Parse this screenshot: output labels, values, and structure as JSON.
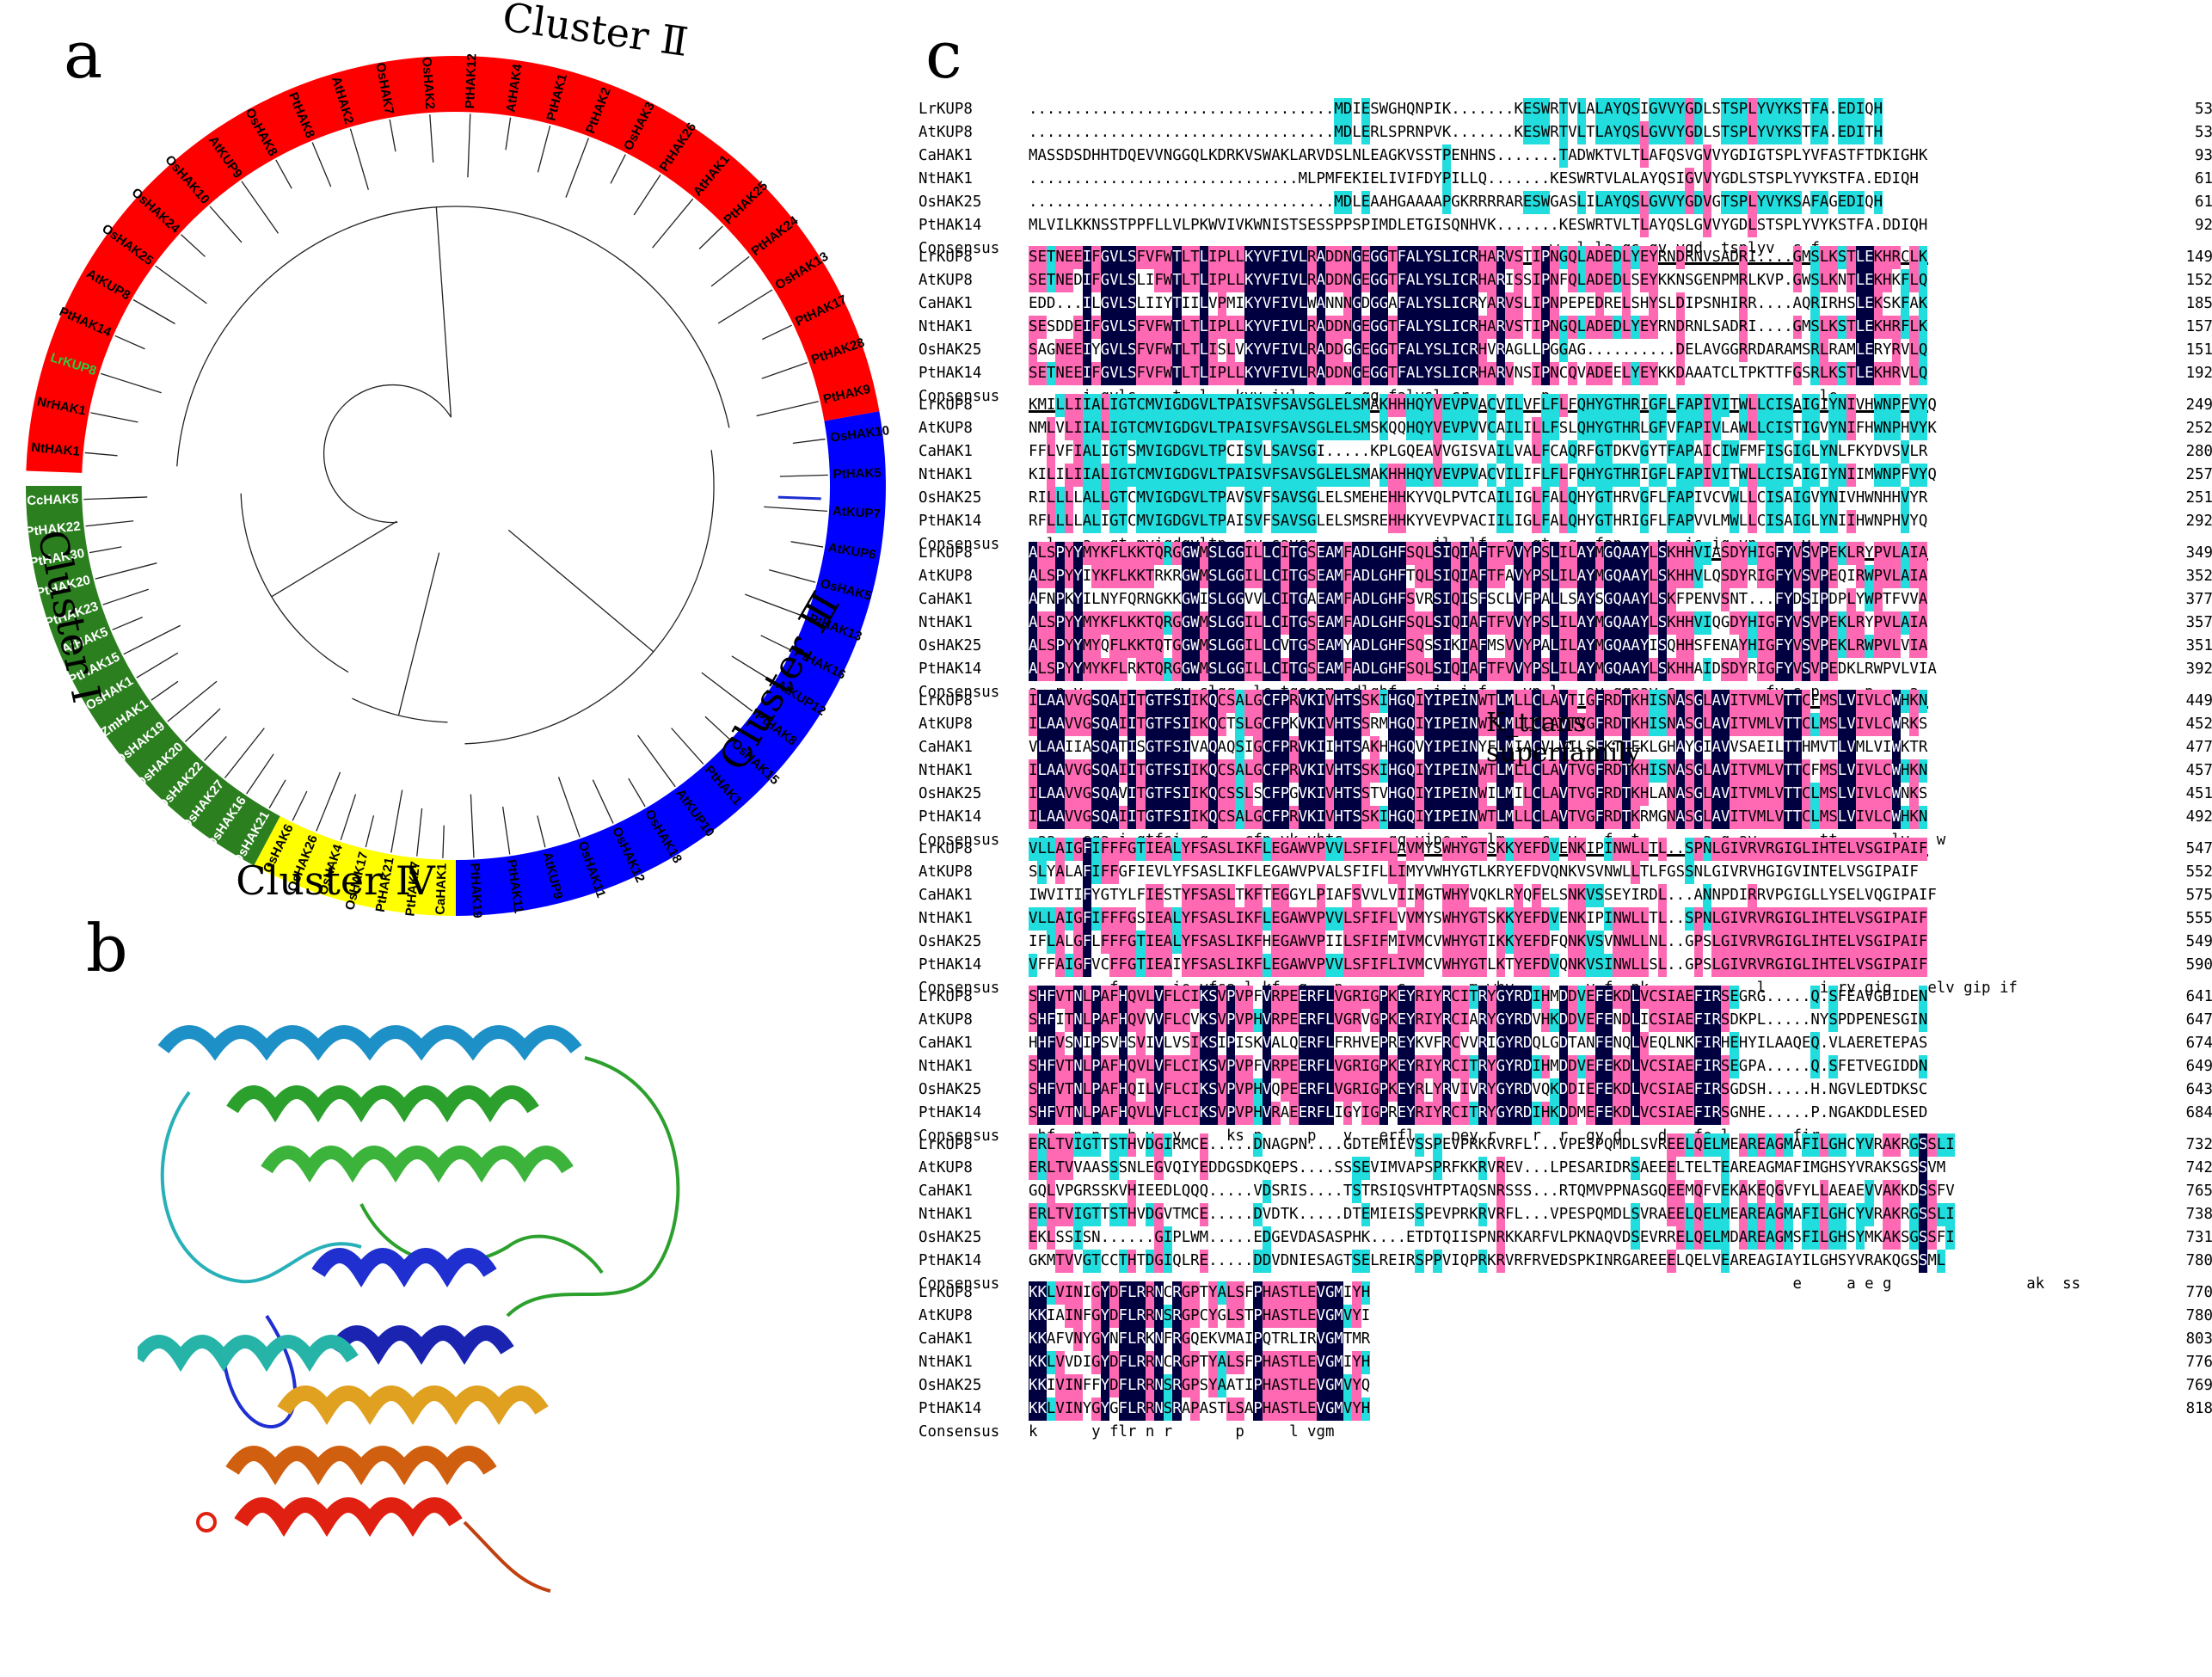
{
  "panel_labels": {
    "a": "a",
    "b": "b",
    "c": "c"
  },
  "tree": {
    "clusters": [
      {
        "label": "Cluster Ⅰ",
        "color": "#2b7f1f",
        "text_color": "#ffffff",
        "leaves": [
          "OsHAK21",
          "OsHAK16",
          "OsHAK27",
          "OsHAK22",
          "OsHAK20",
          "OsHAK19",
          "ZmHAK1",
          "OsHAK1",
          "PtHAK15",
          "AtHAK5",
          "PtHAK23",
          "PtHAK20",
          "PtHAK30",
          "PtHAK22",
          "CcHAK5"
        ]
      },
      {
        "label": "Cluster Ⅳ",
        "color": "#ffff00",
        "text_color": "#000000",
        "leaves": [
          "CaHAK1",
          "PtHAK27",
          "PtHAK21",
          "OsHAK17",
          "OsHAK4",
          "OsHAK26",
          "OsHAK6"
        ]
      },
      {
        "label": "Cluster Ⅲ",
        "color": "#0000ff",
        "text_color": "#000000",
        "leaves": [
          "OsHAK10",
          "PtHAK5",
          "AtKUP7",
          "AtKUP6",
          "OsHAK5",
          "PtHAK13",
          "PtHAK16",
          "AtKUP12",
          "PtHAK8",
          "OsHAK15",
          "PtHAK1",
          "AtKUP10",
          "OsHAK18",
          "OsHAK12",
          "OsHAK11",
          "AtKUP9",
          "PtHAK11",
          "PtHAK19"
        ]
      },
      {
        "label": "Cluster Ⅱ",
        "color": "#ff0000",
        "text_color": "#000000",
        "leaves": [
          "NtHAK1",
          "NrHAK1",
          "LrKUP8",
          "PtHAK14",
          "AtKUP8",
          "OsHAK25",
          "OsHAK24",
          "OsHAK10",
          "AtKUP9",
          "OsHAK8",
          "PtHAK8",
          "AtHAK2",
          "OsHAK7",
          "OsHAK2",
          "PtHAK12",
          "AtHAK4",
          "PtHAK1",
          "PtHAK2",
          "OsHAK3",
          "PtHAK26",
          "AtHAK1",
          "PtHAK25",
          "PtHAK24",
          "OsHAK13",
          "PtHAK17",
          "PtHAK28",
          "PtHAK9"
        ]
      }
    ],
    "highlight_leaf": "LrKUP8",
    "highlight_color": "#2ecc40"
  },
  "alignment": {
    "feature_label": "K_trans superfamily",
    "consensus_name": "Consensus",
    "colors": {
      "identical": "#000040",
      "high": "#ff69b4",
      "low": "#22dddd"
    },
    "blocks": [
      {
        "rows": [
          {
            "name": "LrKUP8",
            "seq": "..................................MDIESWGHQNPIK.......KESWRTVLALAYQSIGVVYGDLSTSPLYVYKSTFA.EDIQH",
            "end": "53"
          },
          {
            "name": "AtKUP8",
            "seq": "..................................MDLERLSPRNPVK.......KESWRTVLTLAYQSLGVVYGDLSTSPLYVYKSTFA.EDITH",
            "end": "53"
          },
          {
            "name": "CaHAK1",
            "seq": "MASSDSDHHTDQEVVNGGQLKDRKVSWAKLARVDSLNLEAGKVSSTPENHNS.......TADWKTVLTLAFQSVGVVYGDIGTSPLYVFASTFTDKIGHK",
            "end": "93"
          },
          {
            "name": "NtHAK1",
            "seq": "..............................MLPMFEKIELIVIFDYPILLQ.......KESWRTVLALAYQSIGVVYGDLSTSPLYVYKSTFA.EDIQH",
            "end": "61"
          },
          {
            "name": "OsHAK25",
            "seq": "..................................MDLEAAHGAAAAPGKRRRRARESWGASLILAYQSLGVVYGDVGTSPLYVYKSAFAGEDIQH",
            "end": "61"
          },
          {
            "name": "PtHAK14",
            "seq": "MLVILKKNSSTPPFLLVLPKWVIVKWNISTSESSPPSPIMDLETGISQNHVK.......KESWRTVLTLAYQSLGVVYGDLSTSPLYVYKSTFA.DDIQH",
            "end": "92"
          }
        ],
        "consensus": "                                                          w  l la qs gv ygd  tsplyv  s f",
        "lines": [
          [
            46,
            100
          ]
        ]
      },
      {
        "rows": [
          {
            "name": "LrKUP8",
            "seq": "SETNEEIFGVLSFVFWTLTLIPLLKYVFIVLRADDNGEGGTFALYSLICRHARVSTIPNGQLADEDLYEYRNDRNVSADRI....GMSLKSTLEKHRCLK",
            "end": "149"
          },
          {
            "name": "AtKUP8",
            "seq": "SETNEDIFGVLSLIFWTLTLIPLLKYVFIVLRADDNGEGGTFALYSLICRHARISSIPNFQLADEDLSEYKKNSGENPMRLKVP.GWSLKNTLEKHKFLQ",
            "end": "152"
          },
          {
            "name": "CaHAK1",
            "seq": "EDD...ILGVLSLIIYTIILVPMIKYVFIVLWANNNGDGGAFALYSLICRYARVSLIPNPEPEDRELSHYSLDIPSNHIRR....AQRIRHSLEKSKFAK",
            "end": "185"
          },
          {
            "name": "NtHAK1",
            "seq": "SESDDEIFGVLSFVFWTLTLIPLLKYVFIVLRADDNGEGGTFALYSLICRHARVSTIPNGQLADEDLYEYRNDRNLSADRI....GMSLKSTLEKHRFLK",
            "end": "157"
          },
          {
            "name": "OsHAK25",
            "seq": "SAGNEEIYGVLSFVFWTLTLISLVKYVFIVLRADDGGEGGTFALYSLICRHVRAGLLPGGAG..........DELAVGGRRDARAMSRLRAMLERYRVLQ",
            "end": "151"
          },
          {
            "name": "PtHAK14",
            "seq": "SETNEEIFGVLSFVFWTLTLIPLLKYVFIVLRADDNGEGGTFALYSLICRHARVNSIPNCQVADEELYEYKKDAAATCLTPKTTFGSRLKSTLEKHRVLQ",
            "end": "192"
          }
        ],
        "consensus": "      i gvls    t  l   kyv ivl a   g gg falysl cr        p                              le",
        "lines": [
          [
            0,
            100
          ]
        ]
      },
      {
        "rows": [
          {
            "name": "LrKUP8",
            "seq": "KMILLIIALIGTCMVIGDGVLTPAISVFSAVSGLELSMAKHHHQYVEVPVACVILVFLFLFQHYGTHRIGFLFAPIVITWLLCISAIGIYNIVHWNPFVYQ",
            "end": "249"
          },
          {
            "name": "AtKUP8",
            "seq": "NMLVLIIALIGTCMVIGDGVLTPAISVFSAVSGLELSMSKQQHQYVEVPVVCAILILLFSLQHYGTHRLGFVFAPIVLAWLLCISTIGVYNIFHWNPHVYK",
            "end": "252"
          },
          {
            "name": "CaHAK1",
            "seq": "FFLVFIALIGTSMVIGDGVLTPCISVLSAVSGI.....KPLGQEAVVGISVAILVALFCAQRFGTDKVGYTFAPAICIWFMFISGIGLYNLFKYDVSVLR",
            "end": "280"
          },
          {
            "name": "NtHAK1",
            "seq": "KILILIIALIGTCMVIGDGVLTPAISVFSAVSGLELSMAKHHHQYVEVPVACVILIFLFLFQHYGTHRIGFLFAPIVITWLLCISAIGIYNIIMWNPFVYQ",
            "end": "257"
          },
          {
            "name": "OsHAK25",
            "seq": "RILLLLALLGTCMVIGDGVLTPAVSVFSAVSGLELSMEHEHHKYVQLPVTCAILIGLFALQHYGTHRVGFLFAPIVCVWLLCISAIGVYNIVHWNHHVYR",
            "end": "251"
          },
          {
            "name": "PtHAK14",
            "seq": "RFLLLLALIGTCMVIGDGVLTPAISVFSAVSGLELSMSREHHKYVEVPVACIILIGLFALQHYGTHRIGFLFAPVVLMWLLCISAIGLYNIIHWNPHVYQ",
            "end": "292"
          }
        ],
        "consensus": "  l   a  gt mvigdgvltp  sv savsg             il  lf  q  gt  g  fap    w  is ig yn     v",
        "lines": [
          [
            0,
            100
          ]
        ]
      },
      {
        "rows": [
          {
            "name": "LrKUP8",
            "seq": "ALSPYYMYKFLKKTQRGGWMSLGGILLCITGSEAMFADLGHFSQLSIQIAFTFVVYPSLILAYMGQAAYLSKHHVIASDYHIGFYVSVPEKLRYPVLAIA",
            "end": "349"
          },
          {
            "name": "AtKUP8",
            "seq": "ALSPYYIYKFLKKTRKRGWMSLGGILLCITGSEAMFADLGHFTQLSIQIAFTFAVYPSLILAYMGQAAYLSKHHVLQSDYRIGFYVSVPEQIRWPVLAIA",
            "end": "352"
          },
          {
            "name": "CaHAK1",
            "seq": "AFNPKYILNYFQRNGKKGWISLGGVVLCITGAEAMFADLGHFSVRSIQISFSCLVFPALLSAYSGQAAYLSKFPENVSNT...FYDSIPDPLYWPTFVVA",
            "end": "377"
          },
          {
            "name": "NtHAK1",
            "seq": "ALSPYYMYKFLKKTQRGGWMSLGGILLCITGSEAMFADLGHFSQLSIQIAFTFVVYPSLILAYMGQAAYLSKHHVIQGDYHIGFYVSVPEKLRYPVLAIA",
            "end": "357"
          },
          {
            "name": "OsHAK25",
            "seq": "ALSPYYMYQFLKKTQTGGWMSLGGILLCVTGSEAMYADLGHFSQSSIKIAFMSVVYPALILAYMGQAAYISQHHSFENAYHIGFYVSVPEKLRWPVLVIA",
            "end": "351"
          },
          {
            "name": "PtHAK14",
            "seq": "ALSPYYMYKFLRKTQRGGWMSLGGILLCITGSEAMFADLGHFSQLSIQIAFTFVVYPSLILAYMGQAAYLSKHHAIDSDYRIGFYVSVPEDKLRWPVLVIA",
            "end": "392"
          }
        ],
        "consensus": "a  p y          gw slgg  lc tgseam adlghf  s i  i f    vp l   ay gqaay s          fy s p     p    a",
        "lines": [
          [
            0,
            100
          ]
        ]
      },
      {
        "rows": [
          {
            "name": "LrKUP8",
            "seq": "ILAAVVGSQAIITGTFSIIKQCSALGCFPRVKIVHTSSKIHGQIYIPEINWTLMLLCLAVTIGFRDTKHISNASGLAVITVMLVTTCFMSLVIVLCWHKN",
            "end": "449"
          },
          {
            "name": "AtKUP8",
            "seq": "ILAAVVGSQAIITGTFSIIKQCTSLGCFPKVKIVHTSSRMHGQIYIPEINWTLMLLCLAVTVGFRDTKHISNASGLAVITVMLVTTCLMSLVIVLCWRKS",
            "end": "452"
          },
          {
            "name": "CaHAK1",
            "seq": "VLAAIIASQATISGTFSIVAQAQSIGCFPRVKIIHTSAKHHGQVYIPEINYFLMIACVLVILSFKTTEKLGHAYGIAVVSAEILTTHMVTLVMLVIWKTR",
            "end": "477"
          },
          {
            "name": "NtHAK1",
            "seq": "ILAAVVGSQAIITGTFSIIKQCSALGCFPRVKIVHTSSKIHGQIYIPEINWTLMLLCLAVTVGFRDTKHISNASGLAVITVMLVTTCFMSLVIVLCWHKN",
            "end": "457"
          },
          {
            "name": "OsHAK25",
            "seq": "ILAAVVGSQAVITGTFSIIKQCSSLSCFPGVKIVHTSSTVHGQIYIPEINWILMILCLAVTVGFRDTKHLANASGLAVITVMLVTTCLMSLVIVLCWNKS",
            "end": "451"
          },
          {
            "name": "PtHAK14",
            "seq": "ILAAVVGSQAIITGTFSIIKQCSALGCFPRVKIVHTSSKIHGQIYIPEINWTLMLLCLAVTVGFRDTKRMGNASGLAVITVMLVTTCLMSLVIVLCWHKN",
            "end": "492"
          }
        ],
        "consensus": " aa   sqa i gtfsi  q    cfp vk vhts     gq yipe n  lm    c  v   f  t       a g av       tt      lv   w",
        "lines": [
          [
            0,
            100
          ]
        ]
      },
      {
        "rows": [
          {
            "name": "LrKUP8",
            "seq": "VLLAIGFIFFFGTIEALYFSASLIKFLEGAWVPVVLSFIFLAVMYSWHYGTSKKYEFDVENKIPINWLLTL..SPNLGIVRVRGIGLIHTELVSGIPAIF",
            "end": "547"
          },
          {
            "name": "AtKUP8",
            "seq": "SLYALAFIFFGFIEVLYFSASLIKFLEGAWVPVALSFIFLLIMYVWHYGTLKRYEFDVQNKVSVNWLLTLFGSSNLGIVRVHGIGVINTELVSGIPAIF",
            "end": "552"
          },
          {
            "name": "CaHAK1",
            "seq": "IWVITIFYGTYLFIESTYFSASLTKFTEGGYLPIAFSVVLVIIMGTWHYVQKLRYQFELSNKVSSEYIRDL...ANNPDIRRVPGIGLLYSELVQGIPAIF",
            "end": "575"
          },
          {
            "name": "NtHAK1",
            "seq": "VLLAIGFIFFFGSIEALYFSASLIKFLEGAWVPVVLSFIFLVVMYSWHYGTSKKYEFDVENKIPINWLLTL..SPNLGIVRVRGIGLIHTELVSGIPAIF",
            "end": "555"
          },
          {
            "name": "OsHAK25",
            "seq": "IFLALGFLFFFGTIEALYFSASLIKFHEGAWVPIILSFIFMIVMCVWHYGTIKKYEFDFQNKVSVNWLLNL..GPSLGIVRVRGIGLIHTELVSGIPAIF",
            "end": "549"
          },
          {
            "name": "PtHAK14",
            "seq": "VFFAIGFVCFFGTIEAIYFSASLIKFLEGAWVPVVLSFIFLIVMCVWHYGTLKTYEFDVQNKVSINWLLSL..GPSLGIVRVRGIGLIHTELVSGIPAIF",
            "end": "590"
          }
        ],
        "consensus": "         f      ie yfsa l kf  g   p      s       m why        y f  nk            l      i rv gig    elv gip if",
        "lines": []
      },
      {
        "rows": [
          {
            "name": "LrKUP8",
            "seq": "SHFVTNLPAFHQVLVFLCIKSVPVPFVRPEERFLVGRIGPKEYRIYRCITRYGYRDIHMDDVEFEKDLVCSIAEFIRSEGRG.....Q.SFEAVGDIDEN",
            "end": "641"
          },
          {
            "name": "AtKUP8",
            "seq": "SHFITNLPAFHQVVVFLCVKSVPVPHVRPEERFLVGRVGPKEYRIYRCIARYGYRDVHKDDVEFENDLICSIAEFIRSDKPL.....NYSPDPENESGIN",
            "end": "647"
          },
          {
            "name": "CaHAK1",
            "seq": "HHFVSNIPSVHSVIVLVSIKSIPISKVALQERFLFRHVEPREYKVFRCVVRIGYRDQLGDTANFENQLVEQLNKFIRHEHYILAAQEQ.VLAERETEPAS",
            "end": "674"
          },
          {
            "name": "NtHAK1",
            "seq": "SHFVTNLPAFHQVLVFLCIKSVPVPFVRPEERFLVGRIGPKEYRIYRCITRYGYRDIHMDDVEFEKDLVCSIAEFIRSEGPA.....Q.SFETVEGIDDN",
            "end": "649"
          },
          {
            "name": "OsHAK25",
            "seq": "SHFVTNLPAFHQILVFLCIKSVPVPHVQPEERFLVGRIGPKEYRLYRVIVRYGYRDVQKDDIEFEKDLVCSIAEFIRSGDSH.....H.NGVLEDTDKSC",
            "end": "643"
          },
          {
            "name": "PtHAK14",
            "seq": "SHFVTNLPAFHQVLVFLCIKSVPVPHVRAEERFLIGYIGPREYRIYRCITRYGYRDIHKDDMEFEKDLVCSIAEFIRSGNHE.....P.NGAKDDLESED",
            "end": "684"
          }
        ],
        "consensus": " hf  n p   h v  v     ks p     p   v   erfl    pey r    r  r  gy d    d   fe l       fir",
        "lines": []
      },
      {
        "rows": [
          {
            "name": "LrKUP8",
            "seq": "ERLTVIGTTSTHVDGIRMCE.....DNAGPN....GDTEMIEVSSPEVPRKRVRFL...VPESPQMDLSVREELQELMEAREAGMAFILGHCYVRAKRGSSLI",
            "end": "732"
          },
          {
            "name": "AtKUP8",
            "seq": "ERLTVVAASSSNLEGVQIYEDDGSDKQEPS....SSSEVIMVAPSPRFKKRVREV...LPESARIDRSAEEELTELTEAREAGMAFIMGHSYVRAKSGSSVM",
            "end": "742"
          },
          {
            "name": "CaHAK1",
            "seq": "GQLVPGRSSKVHIEEDLQQQ.....VDSRIS....TSTRSIQSVHTPTAQSNRSSS...RTQMVPPNASGQEEMQFVEKAKEQGVFYLLAEAEVVAKKDSSFV",
            "end": "765"
          },
          {
            "name": "NtHAK1",
            "seq": "ERLTVIGTTSTHVDGVTMCE.....DVDTK.....DTEMIEISSPEVPRKRVRFL...VPESPQMDLSVRAEELQELMEAREAGMAFILGHCYVRAKRGSSLI",
            "end": "738"
          },
          {
            "name": "OsHAK25",
            "seq": "EKLSSISN......GIPLWM.....EDGEVDASASPHK....ETDTQIISPNRKKARFVLPKNAQVDSEVRRELQELMDAREAGMSFILGHSYMKAKSGSSFI",
            "end": "731"
          },
          {
            "name": "PtHAK14",
            "seq": "GKMTVVGTCCTHTDGIQLRE.....DDVDNIESAGTSELREIRSPPVIQPRKRVRFRVEDSPKINRGAREEELQELVEAREAGIAYILGHSYVRAKQGSSML",
            "end": "780"
          }
        ],
        "consensus": "                                                                                     e     a e g               ak  ss",
        "lines": []
      },
      {
        "rows": [
          {
            "name": "LrKUP8",
            "seq": "KKLVINIGYDFLRRNCRGPTYALSFPHASTLEVGMIYH",
            "end": "770"
          },
          {
            "name": "AtKUP8",
            "seq": "KKIAINFGYDFLRRNSRGPCYGLSTPHASTLEVGMVYI",
            "end": "780"
          },
          {
            "name": "CaHAK1",
            "seq": "KKAFVNYGYNFLRKNFRGQEKVMAIPQTRLIRVGMTMR",
            "end": "803"
          },
          {
            "name": "NtHAK1",
            "seq": "KKLVVDIGYDFLRRNCRGPTYALSFPHASTLEVGMIYH",
            "end": "776"
          },
          {
            "name": "OsHAK25",
            "seq": "KKIVINFFYDFLRRNSRGPSYAATIPHASTLEVGMVYQ",
            "end": "769"
          },
          {
            "name": "PtHAK14",
            "seq": "KKLVINYGYGFLRRNSRAPASTLSAPHASTLEVGMVYH",
            "end": "818"
          }
        ],
        "consensus": "k      y flr n r       p     l vgm",
        "lines": []
      }
    ]
  }
}
